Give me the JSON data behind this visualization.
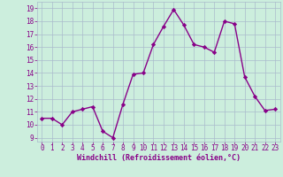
{
  "x": [
    0,
    1,
    2,
    3,
    4,
    5,
    6,
    7,
    8,
    9,
    10,
    11,
    12,
    13,
    14,
    15,
    16,
    17,
    18,
    19,
    20,
    21,
    22,
    23
  ],
  "y": [
    10.5,
    10.5,
    10.0,
    11.0,
    11.2,
    11.4,
    9.5,
    9.0,
    11.6,
    13.9,
    14.0,
    16.2,
    17.6,
    18.9,
    17.7,
    16.2,
    16.0,
    15.6,
    18.0,
    17.8,
    13.7,
    12.2,
    11.1,
    11.2
  ],
  "line_color": "#880088",
  "marker": "D",
  "markersize": 2.2,
  "linewidth": 1.0,
  "bg_color": "#cceedd",
  "grid_color": "#aabbcc",
  "xlabel": "Windchill (Refroidissement éolien,°C)",
  "xlabel_color": "#880088",
  "ylabel_ticks": [
    9,
    10,
    11,
    12,
    13,
    14,
    15,
    16,
    17,
    18,
    19
  ],
  "xlim": [
    -0.5,
    23.5
  ],
  "ylim": [
    8.7,
    19.5
  ],
  "tick_fontsize": 5.5,
  "xlabel_fontsize": 6.0
}
